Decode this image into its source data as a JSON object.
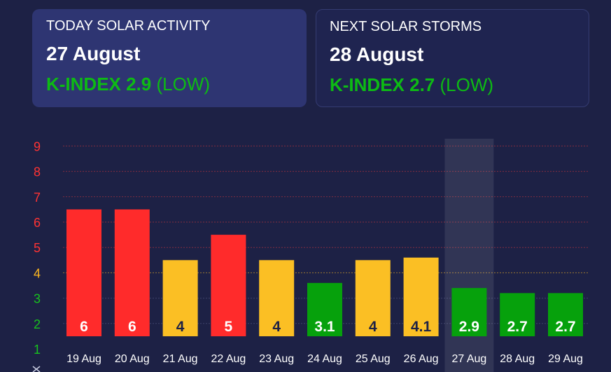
{
  "cards": {
    "today": {
      "label": "TODAY SOLAR ACTIVITY",
      "date": "27 August",
      "k_index": "K-INDEX 2.9",
      "level": "(LOW)"
    },
    "next": {
      "label": "NEXT SOLAR STORMS",
      "date": "28 August",
      "k_index": "K-INDEX 2.7",
      "level": "(LOW)"
    }
  },
  "colors": {
    "high": "#ff2b2b",
    "medium": "#fbbf24",
    "low": "#06a10c",
    "low_text": "#0dbb14",
    "axis_high": "#ff3333",
    "axis_medium": "#ffb81f",
    "axis_low": "#18c21e"
  },
  "highlighted_day": "27 Aug",
  "chart_data": {
    "type": "bar",
    "categories": [
      "19 Aug",
      "20 Aug",
      "21 Aug",
      "22 Aug",
      "23 Aug",
      "24 Aug",
      "25 Aug",
      "26 Aug",
      "27 Aug",
      "28 Aug",
      "29 Aug"
    ],
    "values": [
      6,
      6,
      4,
      5,
      4,
      3.1,
      4,
      4.1,
      2.9,
      2.7,
      2.7
    ],
    "labels": [
      "6",
      "6",
      "4",
      "5",
      "4",
      "3.1",
      "4",
      "4.1",
      "2.9",
      "2.7",
      "2.7"
    ],
    "levels": [
      "high",
      "high",
      "medium",
      "high",
      "medium",
      "low",
      "medium",
      "medium",
      "low",
      "low",
      "low"
    ],
    "y_ticks": [
      "1",
      "2",
      "3",
      "4",
      "5",
      "6",
      "7",
      "8",
      "9"
    ],
    "ylim": [
      1,
      9
    ],
    "grid": true
  }
}
